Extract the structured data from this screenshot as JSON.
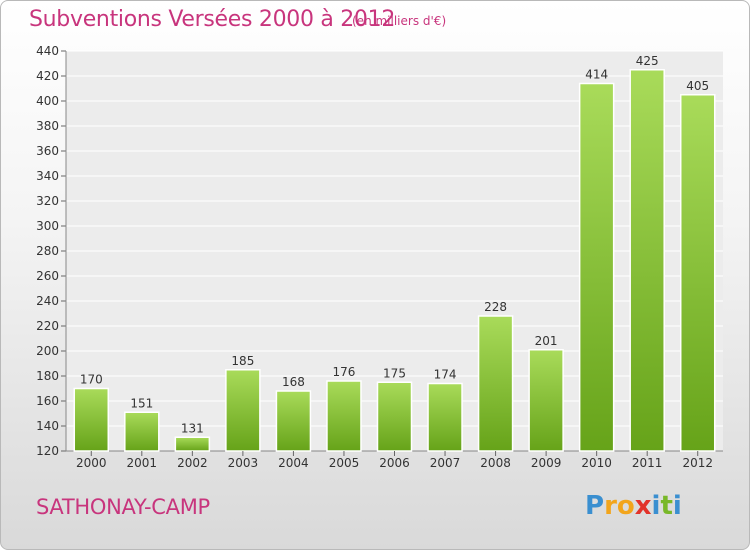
{
  "title": "Subventions Versées 2000 à 2012",
  "subtitle": "(en milliers d'€)",
  "commune": "SATHONAY-CAMP",
  "logo": {
    "text": "Proxiti",
    "letters": [
      "P",
      "r",
      "o",
      "x",
      "i",
      "t",
      "i"
    ],
    "colors": [
      "#3a8fd0",
      "#f2a51c",
      "#f2a51c",
      "#e2332a",
      "#3a8fd0",
      "#79b829",
      "#3a8fd0"
    ]
  },
  "colors": {
    "accent": "#c8357d",
    "bar_light": "#a9db5a",
    "bar_dark": "#66a319"
  },
  "chart_data": {
    "type": "bar",
    "categories": [
      "2000",
      "2001",
      "2002",
      "2003",
      "2004",
      "2005",
      "2006",
      "2007",
      "2008",
      "2009",
      "2010",
      "2011",
      "2012"
    ],
    "values": [
      170,
      151,
      131,
      185,
      168,
      176,
      175,
      174,
      228,
      201,
      414,
      425,
      405
    ],
    "title": "Subventions Versées 2000 à 2012",
    "ylim": [
      120,
      440
    ],
    "yticks": [
      120,
      140,
      160,
      180,
      200,
      220,
      240,
      260,
      280,
      300,
      320,
      340,
      360,
      380,
      400,
      420,
      440
    ],
    "grid": true
  }
}
